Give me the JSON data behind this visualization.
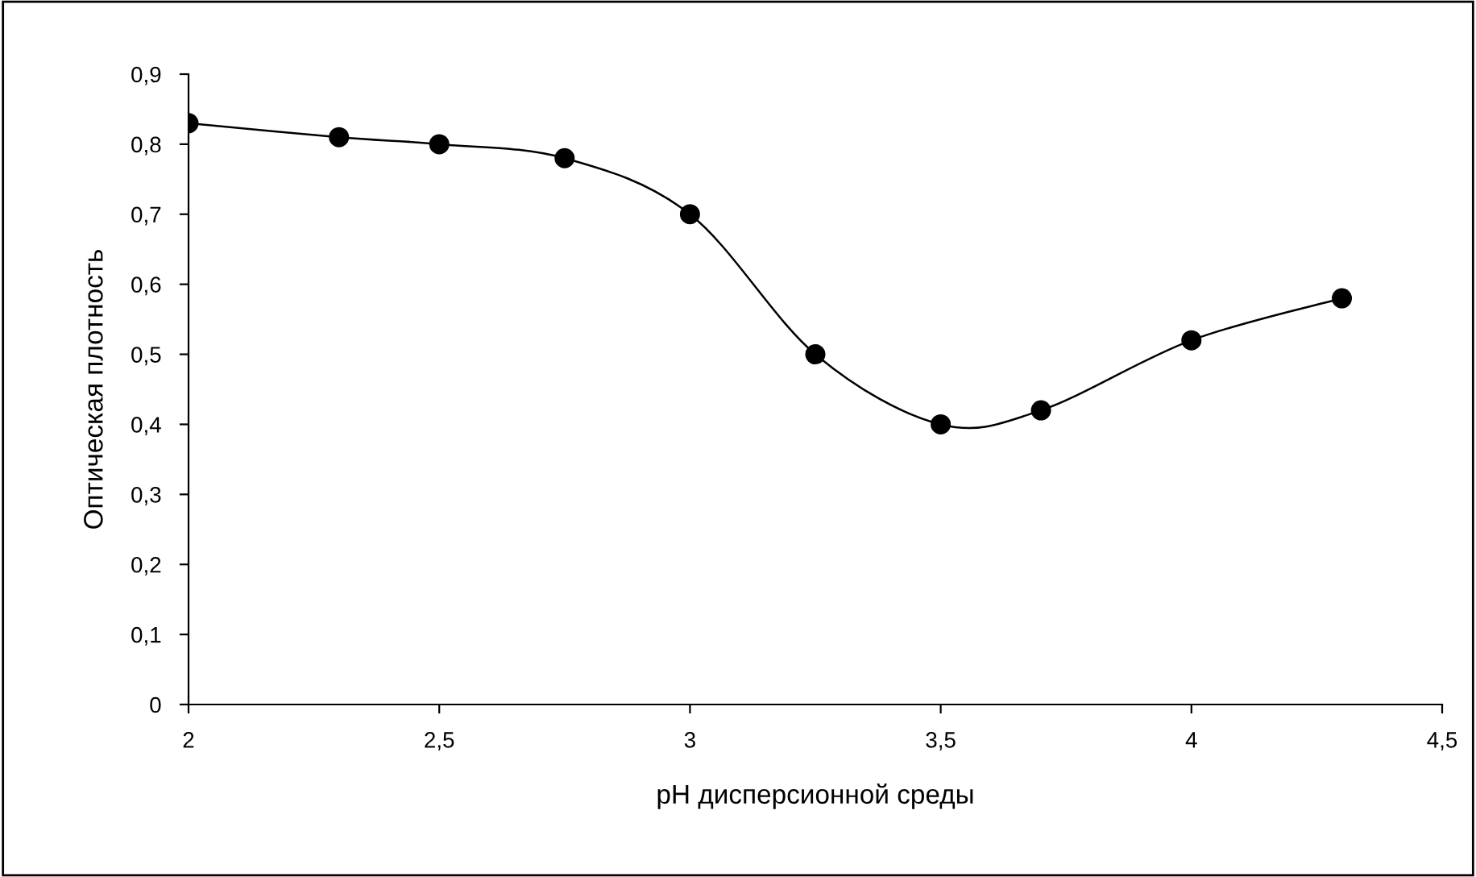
{
  "chart_data": {
    "type": "line",
    "xlabel": "pH дисперсионной среды",
    "ylabel": "Оптическая плотность",
    "x": [
      2,
      2.3,
      2.5,
      2.75,
      3,
      3.25,
      3.5,
      3.7,
      4,
      4.3
    ],
    "series": [
      {
        "color": "#000000",
        "values": [
          0.83,
          0.81,
          0.8,
          0.78,
          0.7,
          0.5,
          0.4,
          0.42,
          0.52,
          0.58
        ]
      }
    ],
    "marker": "circle",
    "line_style": "solid",
    "grid": false,
    "legend": false,
    "xlim": [
      2,
      4.5
    ],
    "xticks": [
      2,
      {
        "value": 2.5,
        "label": "2,5"
      },
      3,
      {
        "value": 3.5,
        "label": "3,5"
      },
      4,
      {
        "value": 4.5,
        "label": "4,5"
      }
    ],
    "ylim": [
      0,
      0.9
    ],
    "yticks": [
      0,
      {
        "value": 0.1,
        "label": "0,1"
      },
      {
        "value": 0.2,
        "label": "0,2"
      },
      {
        "value": 0.3,
        "label": "0,3"
      },
      {
        "value": 0.4,
        "label": "0,4"
      },
      {
        "value": 0.5,
        "label": "0,5"
      },
      {
        "value": 0.6,
        "label": "0,6"
      },
      {
        "value": 0.7,
        "label": "0,7"
      },
      {
        "value": 0.8,
        "label": "0,8"
      },
      {
        "value": 0.9,
        "label": "0,9"
      }
    ]
  }
}
